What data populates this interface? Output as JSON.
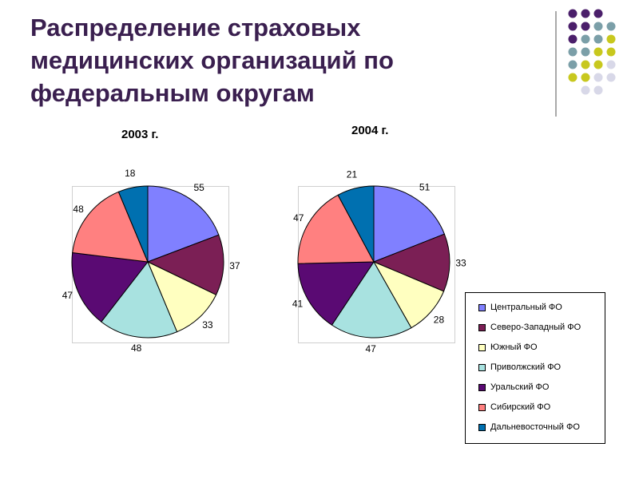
{
  "title_lines": [
    "Распределение страховых",
    "медицинских организаций по",
    "федеральным округам"
  ],
  "decoration": {
    "dot_colors": [
      "#4b1f6b",
      "#7b9fa8",
      "#c8c81e",
      "#d8d8e8"
    ]
  },
  "legend": {
    "items": [
      {
        "label": "Центральный ФО",
        "color": "#8080ff"
      },
      {
        "label": "Северо-Западный ФО",
        "color": "#7b1f55"
      },
      {
        "label": "Южный ФО",
        "color": "#ffffc0"
      },
      {
        "label": "Приволжский ФО",
        "color": "#a8e2e0"
      },
      {
        "label": "Уральский ФО",
        "color": "#5a0a73"
      },
      {
        "label": "Сибирский ФО",
        "color": "#ff8080"
      },
      {
        "label": "Дальневосточный ФО",
        "color": "#0070b0"
      }
    ]
  },
  "chart_data": [
    {
      "type": "pie",
      "title": "2003 г.",
      "categories": [
        "Центральный ФО",
        "Северо-Западный ФО",
        "Южный ФО",
        "Приволжский ФО",
        "Уральский ФО",
        "Сибирский ФО",
        "Дальневосточный ФО"
      ],
      "values": [
        55,
        37,
        33,
        48,
        47,
        48,
        18
      ],
      "data_labels": [
        "55",
        "37",
        "33",
        "48",
        "47",
        "48",
        "18"
      ],
      "legend_position": "right"
    },
    {
      "type": "pie",
      "title": "2004 г.",
      "categories": [
        "Центральный ФО",
        "Северо-Западный ФО",
        "Южный ФО",
        "Приволжский ФО",
        "Уральский ФО",
        "Сибирский ФО",
        "Дальневосточный ФО"
      ],
      "values": [
        51,
        33,
        28,
        47,
        41,
        47,
        21
      ],
      "data_labels": [
        "51",
        "33",
        "28",
        "47",
        "41",
        "47",
        "21"
      ],
      "legend_position": "right"
    }
  ]
}
